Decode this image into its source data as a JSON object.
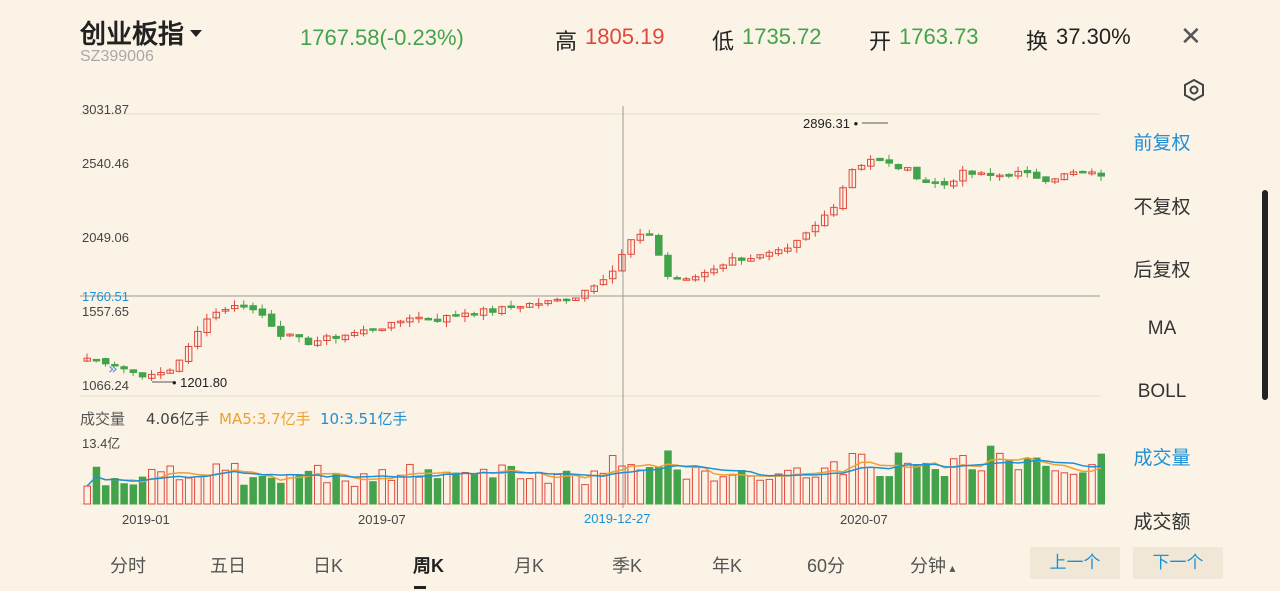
{
  "header": {
    "title": "创业板指",
    "code": "SZ399006",
    "price_change": "1767.58(-0.23%)",
    "high_label": "高",
    "high": "1805.19",
    "low_label": "低",
    "low": "1735.72",
    "open_label": "开",
    "open": "1763.73",
    "turnover_label": "换",
    "turnover": "37.30%"
  },
  "sidebar": {
    "adj_front": "前复权",
    "adj_none": "不复权",
    "adj_back": "后复权",
    "ma": "MA",
    "boll": "BOLL",
    "volume": "成交量",
    "amount": "成交额"
  },
  "volume_header": {
    "label": "成交量",
    "value": "4.06亿手",
    "ma5": "MA5:3.7亿手",
    "ma10": "10:3.51亿手",
    "max": "13.4亿"
  },
  "tabs": [
    "分时",
    "五日",
    "日K",
    "周K",
    "月K",
    "季K",
    "年K",
    "60分",
    "分钟"
  ],
  "active_tab": "周K",
  "buttons": {
    "prev": "上一个",
    "next": "下一个"
  },
  "chart_data": {
    "type": "candlestick",
    "y_ticks": [
      "3031.87",
      "2540.46",
      "2049.06",
      "1557.65",
      "1066.24"
    ],
    "ylim": [
      1066.24,
      3031.87
    ],
    "x_ticks": [
      "2019-01",
      "2019-07",
      "2020-07"
    ],
    "crosshair": {
      "date": "2019-12-27",
      "value": "1760.51"
    },
    "max_marker": "2896.31",
    "min_marker": "1201.80",
    "colors": {
      "up": "#e0473b",
      "down": "#43a34b",
      "ma5": "#f0a030",
      "ma10": "#1e90d6",
      "crosshair": "#999999"
    }
  }
}
